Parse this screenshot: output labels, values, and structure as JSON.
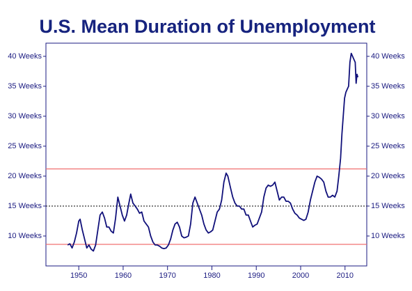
{
  "chart_data": {
    "type": "line",
    "title": "U.S. Mean Duration of Unemployment",
    "x": [
      1947.5,
      1948,
      1948.5,
      1949,
      1949.5,
      1950,
      1950.3,
      1950.8,
      1951.3,
      1951.8,
      1952.3,
      1952.8,
      1953.3,
      1953.8,
      1954.3,
      1954.8,
      1955.3,
      1955.8,
      1956.3,
      1956.8,
      1957.3,
      1957.8,
      1958.3,
      1958.8,
      1959.3,
      1959.8,
      1960.3,
      1960.8,
      1961.3,
      1961.7,
      1962.2,
      1962.7,
      1963.2,
      1963.7,
      1964.2,
      1964.7,
      1965.2,
      1965.7,
      1966.2,
      1966.7,
      1967.2,
      1967.7,
      1968.2,
      1968.7,
      1969.2,
      1969.7,
      1970.2,
      1970.7,
      1971.2,
      1971.7,
      1972.2,
      1972.7,
      1973.2,
      1973.7,
      1974.2,
      1974.7,
      1975.2,
      1975.7,
      1976.2,
      1976.7,
      1977.2,
      1977.7,
      1978.2,
      1978.7,
      1979.2,
      1979.7,
      1980.2,
      1980.7,
      1981.2,
      1981.7,
      1982.2,
      1982.7,
      1983.2,
      1983.6,
      1984.2,
      1984.7,
      1985.2,
      1985.7,
      1986.2,
      1986.7,
      1987.2,
      1987.7,
      1988.2,
      1988.7,
      1989.2,
      1989.7,
      1990.2,
      1990.7,
      1991.2,
      1991.7,
      1992.2,
      1992.7,
      1993.2,
      1993.7,
      1994.2,
      1994.7,
      1995.2,
      1995.7,
      1996.2,
      1996.7,
      1997.2,
      1997.7,
      1998.2,
      1998.7,
      1999.2,
      1999.7,
      2000.2,
      2000.7,
      2001.2,
      2001.7,
      2002.2,
      2002.7,
      2003.2,
      2003.7,
      2004.2,
      2004.7,
      2005.2,
      2005.7,
      2006.2,
      2006.7,
      2007.2,
      2007.7,
      2008.2,
      2008.6,
      2009.0,
      2009.3,
      2009.6,
      2009.9,
      2010.2,
      2010.5,
      2010.8,
      2011.1,
      2011.4,
      2011.7,
      2012.0,
      2012.3,
      2012.5,
      2012.7,
      2012.9
    ],
    "series": [
      {
        "color": "#10107a",
        "values": [
          8.5,
          8.7,
          8.0,
          9,
          10.5,
          12.5,
          12.8,
          11,
          9.5,
          8,
          8.5,
          7.8,
          7.5,
          8.5,
          11,
          13.5,
          14,
          13,
          11.5,
          11.5,
          10.8,
          10.5,
          13,
          16.5,
          15,
          13.5,
          12.5,
          13.5,
          15.5,
          17,
          15.5,
          15,
          14.5,
          13.8,
          14,
          12.5,
          12,
          11.5,
          10,
          9,
          8.5,
          8.5,
          8.3,
          8,
          7.9,
          8,
          8.5,
          9.5,
          11,
          12,
          12.3,
          11.5,
          10,
          9.7,
          9.8,
          10,
          12,
          15.5,
          16.5,
          15.5,
          14.5,
          13.5,
          12,
          11,
          10.5,
          10.7,
          11,
          12.5,
          14,
          14.5,
          16,
          19,
          20.5,
          20,
          18,
          16.5,
          15.5,
          15,
          15,
          14.5,
          14.5,
          13.5,
          13.5,
          12.5,
          11.5,
          11.8,
          12,
          13,
          14,
          16.5,
          18,
          18.5,
          18.3,
          18.5,
          19,
          17.5,
          16,
          16.5,
          16.5,
          15.8,
          15.8,
          15.5,
          14.5,
          13.8,
          13.5,
          13,
          12.8,
          12.6,
          12.8,
          14,
          16,
          17.5,
          19,
          20,
          19.8,
          19.5,
          19,
          17.5,
          16.5,
          16.5,
          16.8,
          16.5,
          17.5,
          20,
          23,
          27,
          30,
          33,
          34,
          34.5,
          35,
          39,
          40.5,
          40,
          39.5,
          39,
          35.5,
          37,
          36.5
        ]
      }
    ],
    "xlim": [
      1942.6,
      2014.9
    ],
    "xticks": [
      1950,
      1960,
      1970,
      1980,
      1990,
      2000,
      2010
    ],
    "ylim": [
      5,
      42.2
    ],
    "yticks": [
      {
        "value": 10,
        "label": "10 Weeks"
      },
      {
        "value": 15,
        "label": "15 Weeks"
      },
      {
        "value": 20,
        "label": "20 Weeks"
      },
      {
        "value": 25,
        "label": "25 Weeks"
      },
      {
        "value": 30,
        "label": "30 Weeks"
      },
      {
        "value": 35,
        "label": "35 Weeks"
      },
      {
        "value": 40,
        "label": "40 Weeks"
      }
    ],
    "reference_lines": [
      {
        "value": 21.2,
        "color": "#f07070",
        "style": "solid"
      },
      {
        "value": 15,
        "color": "#333333",
        "style": "dotted"
      },
      {
        "value": 8.6,
        "color": "#f07070",
        "style": "solid"
      }
    ]
  }
}
